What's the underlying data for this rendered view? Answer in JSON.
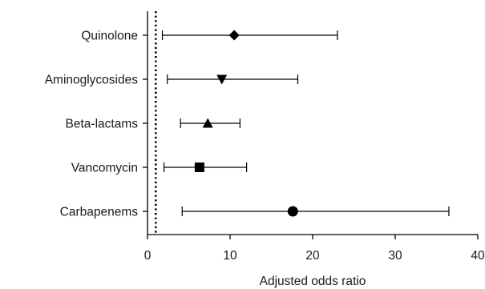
{
  "chart_data": {
    "type": "forest",
    "xlabel": "Adjusted odds ratio",
    "xlim": [
      0,
      40
    ],
    "xticks": [
      0,
      10,
      20,
      30,
      40
    ],
    "reference_line": 1,
    "rows": [
      {
        "label": "Quinolone",
        "or": 10.5,
        "lo": 1.8,
        "hi": 23.0,
        "marker": "diamond"
      },
      {
        "label": "Aminoglycosides",
        "or": 9.0,
        "lo": 2.4,
        "hi": 18.2,
        "marker": "triangle-down"
      },
      {
        "label": "Beta-lactams",
        "or": 7.3,
        "lo": 4.0,
        "hi": 11.2,
        "marker": "triangle-up"
      },
      {
        "label": "Vancomycin",
        "or": 6.3,
        "lo": 2.0,
        "hi": 12.0,
        "marker": "square"
      },
      {
        "label": "Carbapenems",
        "or": 17.6,
        "lo": 4.2,
        "hi": 36.5,
        "marker": "circle"
      }
    ]
  }
}
